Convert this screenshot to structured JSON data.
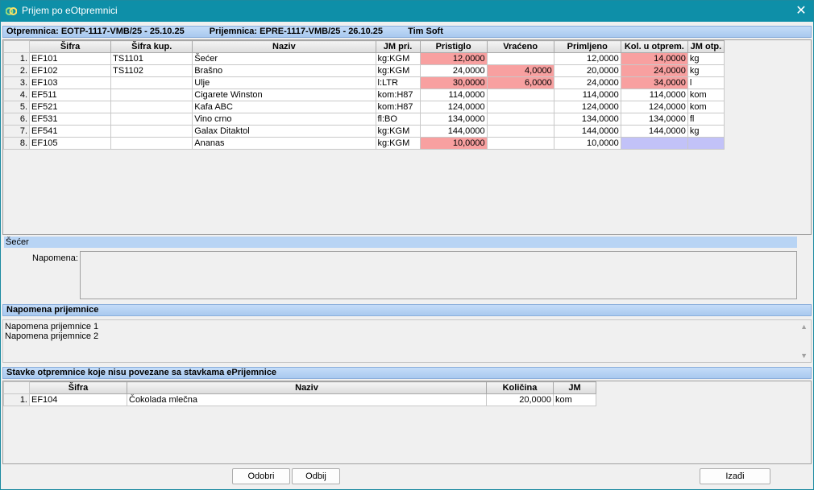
{
  "window": {
    "title": "Prijem po eOtpremnici",
    "close_glyph": "✕"
  },
  "header": {
    "otpremnica": "Otpremnica: EOTP-1117-VMB/25 - 25.10.25",
    "prijemnica": "Prijemnica: EPRE-1117-VMB/25 - 26.10.25",
    "firma": "Tim Soft"
  },
  "main_table": {
    "columns": [
      "",
      "Šifra",
      "Šifra kup.",
      "Naziv",
      "JM pri.",
      "Pristiglo",
      "Vraćeno",
      "Primljeno",
      "Kol. u otprem.",
      "JM otp."
    ],
    "rows": [
      {
        "rn": "1.",
        "sifra": "EF101",
        "sifra_kup": "TS1101",
        "naziv": "Šećer",
        "jm_pri": "kg:KGM",
        "pristiglo": "12,0000",
        "vraceno": "",
        "primljeno": "12,0000",
        "kol_otp": "14,0000",
        "jm_otp": "kg"
      },
      {
        "rn": "2.",
        "sifra": "EF102",
        "sifra_kup": "TS1102",
        "naziv": "Brašno",
        "jm_pri": "kg:KGM",
        "pristiglo": "24,0000",
        "vraceno": "4,0000",
        "primljeno": "20,0000",
        "kol_otp": "24,0000",
        "jm_otp": "kg"
      },
      {
        "rn": "3.",
        "sifra": "EF103",
        "sifra_kup": "",
        "naziv": "Ulje",
        "jm_pri": "l:LTR",
        "pristiglo": "30,0000",
        "vraceno": "6,0000",
        "primljeno": "24,0000",
        "kol_otp": "34,0000",
        "jm_otp": "l"
      },
      {
        "rn": "4.",
        "sifra": "EF511",
        "sifra_kup": "",
        "naziv": "Cigarete Winston",
        "jm_pri": "kom:H87",
        "pristiglo": "114,0000",
        "vraceno": "",
        "primljeno": "114,0000",
        "kol_otp": "114,0000",
        "jm_otp": "kom"
      },
      {
        "rn": "5.",
        "sifra": "EF521",
        "sifra_kup": "",
        "naziv": "Kafa ABC",
        "jm_pri": "kom:H87",
        "pristiglo": "124,0000",
        "vraceno": "",
        "primljeno": "124,0000",
        "kol_otp": "124,0000",
        "jm_otp": "kom"
      },
      {
        "rn": "6.",
        "sifra": "EF531",
        "sifra_kup": "",
        "naziv": "Vino crno",
        "jm_pri": "fl:BO",
        "pristiglo": "134,0000",
        "vraceno": "",
        "primljeno": "134,0000",
        "kol_otp": "134,0000",
        "jm_otp": "fl"
      },
      {
        "rn": "7.",
        "sifra": "EF541",
        "sifra_kup": "",
        "naziv": "Galax Ditaktol",
        "jm_pri": "kg:KGM",
        "pristiglo": "144,0000",
        "vraceno": "",
        "primljeno": "144,0000",
        "kol_otp": "144,0000",
        "jm_otp": "kg"
      },
      {
        "rn": "8.",
        "sifra": "EF105",
        "sifra_kup": "",
        "naziv": "Ananas",
        "jm_pri": "kg:KGM",
        "pristiglo": "10,0000",
        "vraceno": "",
        "primljeno": "10,0000",
        "kol_otp": "",
        "jm_otp": ""
      }
    ],
    "highlight_red": "#f8a0a0",
    "highlight_blue": "#c2c2f8"
  },
  "detail": {
    "selected_name": "Šećer",
    "napomena_label": "Napomena:",
    "napomena_value": ""
  },
  "napomena_prijemnice": {
    "title": "Napomena prijemnice",
    "lines": [
      "Napomena prijemnice 1",
      "Napomena prijemnice 2"
    ]
  },
  "unlinked": {
    "title": "Stavke otpremnice koje nisu povezane sa stavkama ePrijemnice",
    "columns": [
      "",
      "Šifra",
      "Naziv",
      "Količina",
      "JM"
    ],
    "rows": [
      {
        "rn": "1.",
        "sifra": "EF104",
        "naziv": "Čokolada mlečna",
        "kolicina": "20,0000",
        "jm": "kom"
      }
    ]
  },
  "buttons": {
    "odobri": "Odobri",
    "odbij": "Odbij",
    "izadji": "Izađi"
  },
  "colors": {
    "titlebar": "#0e8fa8",
    "section_bar": "#b8d4f4"
  }
}
